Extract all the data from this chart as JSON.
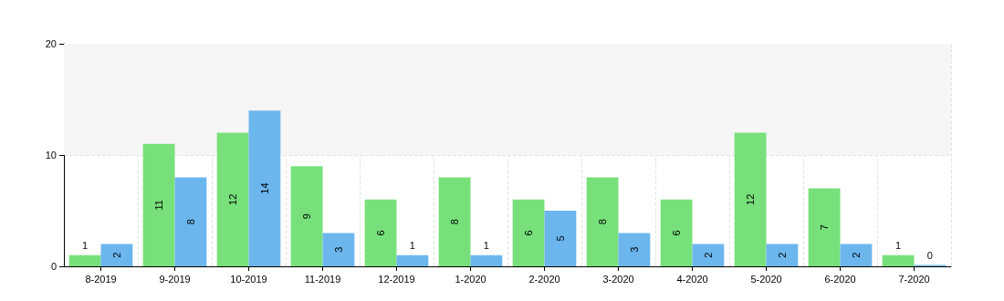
{
  "chart_data": {
    "type": "bar",
    "categories": [
      "8-2019",
      "9-2019",
      "10-2019",
      "11-2019",
      "12-2019",
      "1-2020",
      "2-2020",
      "3-2020",
      "4-2020",
      "5-2020",
      "6-2020",
      "7-2020"
    ],
    "series": [
      {
        "color": "#77e07a",
        "values": [
          1,
          11,
          12,
          9,
          6,
          8,
          6,
          8,
          6,
          12,
          7,
          1
        ]
      },
      {
        "color": "#6cb6ee",
        "values": [
          2,
          8,
          14,
          3,
          1,
          1,
          5,
          3,
          2,
          2,
          2,
          0
        ]
      }
    ],
    "ylim": [
      0,
      20
    ],
    "yticks": [
      0,
      10,
      20
    ],
    "grid": true,
    "data_labels": true,
    "bands": [
      {
        "axis": "y",
        "from": 10,
        "to": 20,
        "color": "#f6f6f6"
      }
    ]
  }
}
